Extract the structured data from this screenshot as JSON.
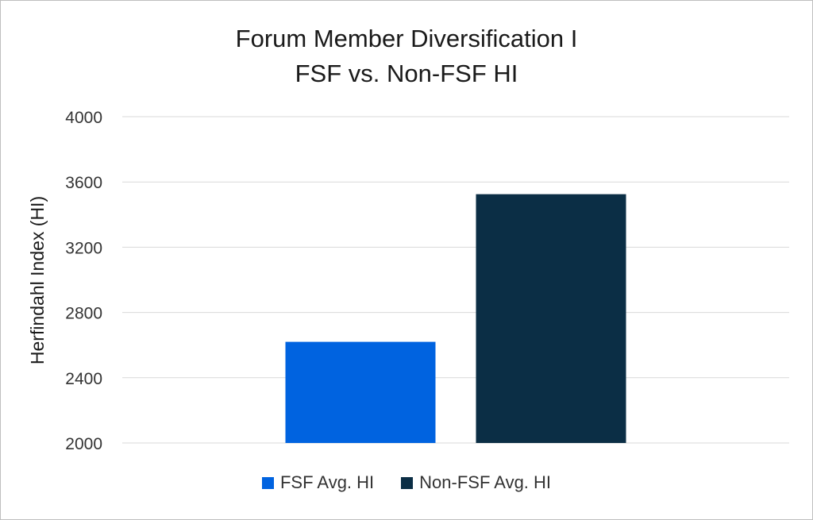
{
  "chart_data": {
    "type": "bar",
    "title_lines": [
      "Forum Member Diversification I",
      "FSF vs. Non-FSF HI"
    ],
    "xlabel": "",
    "ylabel": "Herfindahl Index (HI)",
    "ylim": [
      2000,
      4000
    ],
    "yticks": [
      2000,
      2400,
      2800,
      3200,
      3600,
      4000
    ],
    "grid": true,
    "legend_position": "bottom",
    "series": [
      {
        "name": "FSF Avg. HI",
        "value": 2620,
        "color": "#0063E0"
      },
      {
        "name": "Non-FSF Avg. HI",
        "value": 3525,
        "color": "#0B2E45"
      }
    ]
  }
}
